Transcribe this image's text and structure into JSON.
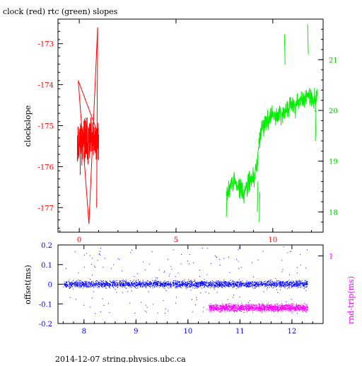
{
  "page_title": "clock (red) rtc (green) slopes",
  "footer": "2014-12-07 string.physics.ubc.ca",
  "colors": {
    "clock": "#ff0000",
    "rtc": "#00ee00",
    "offset": "#0000ff",
    "rndtrip": "#ff00ff",
    "axes": "#000000"
  },
  "chart_data": [
    {
      "type": "line",
      "title": "clock (red) rtc (green) slopes",
      "ylabel": "clockslope",
      "right_ylabel": "",
      "xlim": [
        -1.1,
        12.6
      ],
      "ylim": [
        -177.6,
        -172.4
      ],
      "right_ylim": [
        17.6,
        21.8
      ],
      "x_ticks": [
        "0",
        "5",
        "10"
      ],
      "x_tick_values": [
        0,
        5,
        10
      ],
      "y_ticks": [
        "-173",
        "-174",
        "-175",
        "-176",
        "-177"
      ],
      "y_tick_values": [
        -173,
        -174,
        -175,
        -176,
        -177
      ],
      "right_y_ticks": [
        "18",
        "19",
        "20",
        "21"
      ],
      "right_y_tick_values": [
        18,
        19,
        20,
        21
      ],
      "grid": false,
      "series": [
        {
          "name": "clock",
          "axis": "left",
          "x_range": [
            -0.1,
            1.0
          ],
          "points": 70,
          "mean": -175.4,
          "band": [
            -176.9,
            -173.6
          ],
          "extremes": [
            [
              -0.05,
              -173.9
            ],
            [
              0.5,
              -177.4
            ],
            [
              0.95,
              -172.6
            ],
            [
              0.9,
              -177.0
            ]
          ]
        },
        {
          "name": "rtc",
          "axis": "left-of-right",
          "x_range": [
            7.6,
            12.3
          ],
          "points": [
            [
              7.6,
              18.3
            ],
            [
              7.9,
              18.6
            ],
            [
              8.2,
              18.5
            ],
            [
              8.5,
              18.4
            ],
            [
              8.8,
              18.6
            ],
            [
              9.1,
              18.7
            ],
            [
              9.4,
              19.7
            ],
            [
              9.7,
              19.8
            ],
            [
              10.0,
              19.9
            ],
            [
              10.3,
              19.9
            ],
            [
              10.6,
              20.0
            ],
            [
              10.9,
              20.1
            ],
            [
              11.2,
              20.1
            ],
            [
              11.5,
              20.2
            ],
            [
              11.8,
              20.3
            ],
            [
              12.1,
              20.2
            ],
            [
              12.3,
              20.3
            ]
          ],
          "extremes": [
            [
              7.6,
              17.9
            ],
            [
              9.2,
              18.0
            ],
            [
              9.3,
              17.8
            ],
            [
              10.6,
              21.5
            ],
            [
              11.8,
              21.7
            ],
            [
              12.2,
              19.4
            ]
          ]
        }
      ]
    },
    {
      "type": "scatter",
      "title": "",
      "xlabel": "",
      "ylabel": "offset(ms)",
      "right_ylabel": "rnd-trip(ms)",
      "xlim": [
        7.5,
        12.6
      ],
      "ylim": [
        -0.2,
        0.2
      ],
      "right_ylim": [
        -0.85,
        1.3
      ],
      "x_ticks": [
        "8",
        "9",
        "10",
        "11",
        "12"
      ],
      "x_tick_values": [
        8,
        9,
        10,
        11,
        12
      ],
      "y_ticks": [
        "0.2",
        "0.1",
        "0",
        "-0.1",
        "-0.2"
      ],
      "y_tick_values": [
        0.2,
        0.1,
        0,
        -0.1,
        -0.2
      ],
      "right_y_ticks": [
        "1"
      ],
      "right_y_tick_values": [
        1
      ],
      "grid": false,
      "series": [
        {
          "name": "offset",
          "axis": "left",
          "x_range": [
            7.6,
            12.3
          ],
          "center": 0.0,
          "spread": 0.03,
          "outlier_range": [
            -0.15,
            0.19
          ]
        },
        {
          "name": "rnd-trip",
          "axis": "right",
          "x_range": [
            10.4,
            12.3
          ],
          "center": -0.12,
          "spread": 0.03
        }
      ]
    }
  ]
}
